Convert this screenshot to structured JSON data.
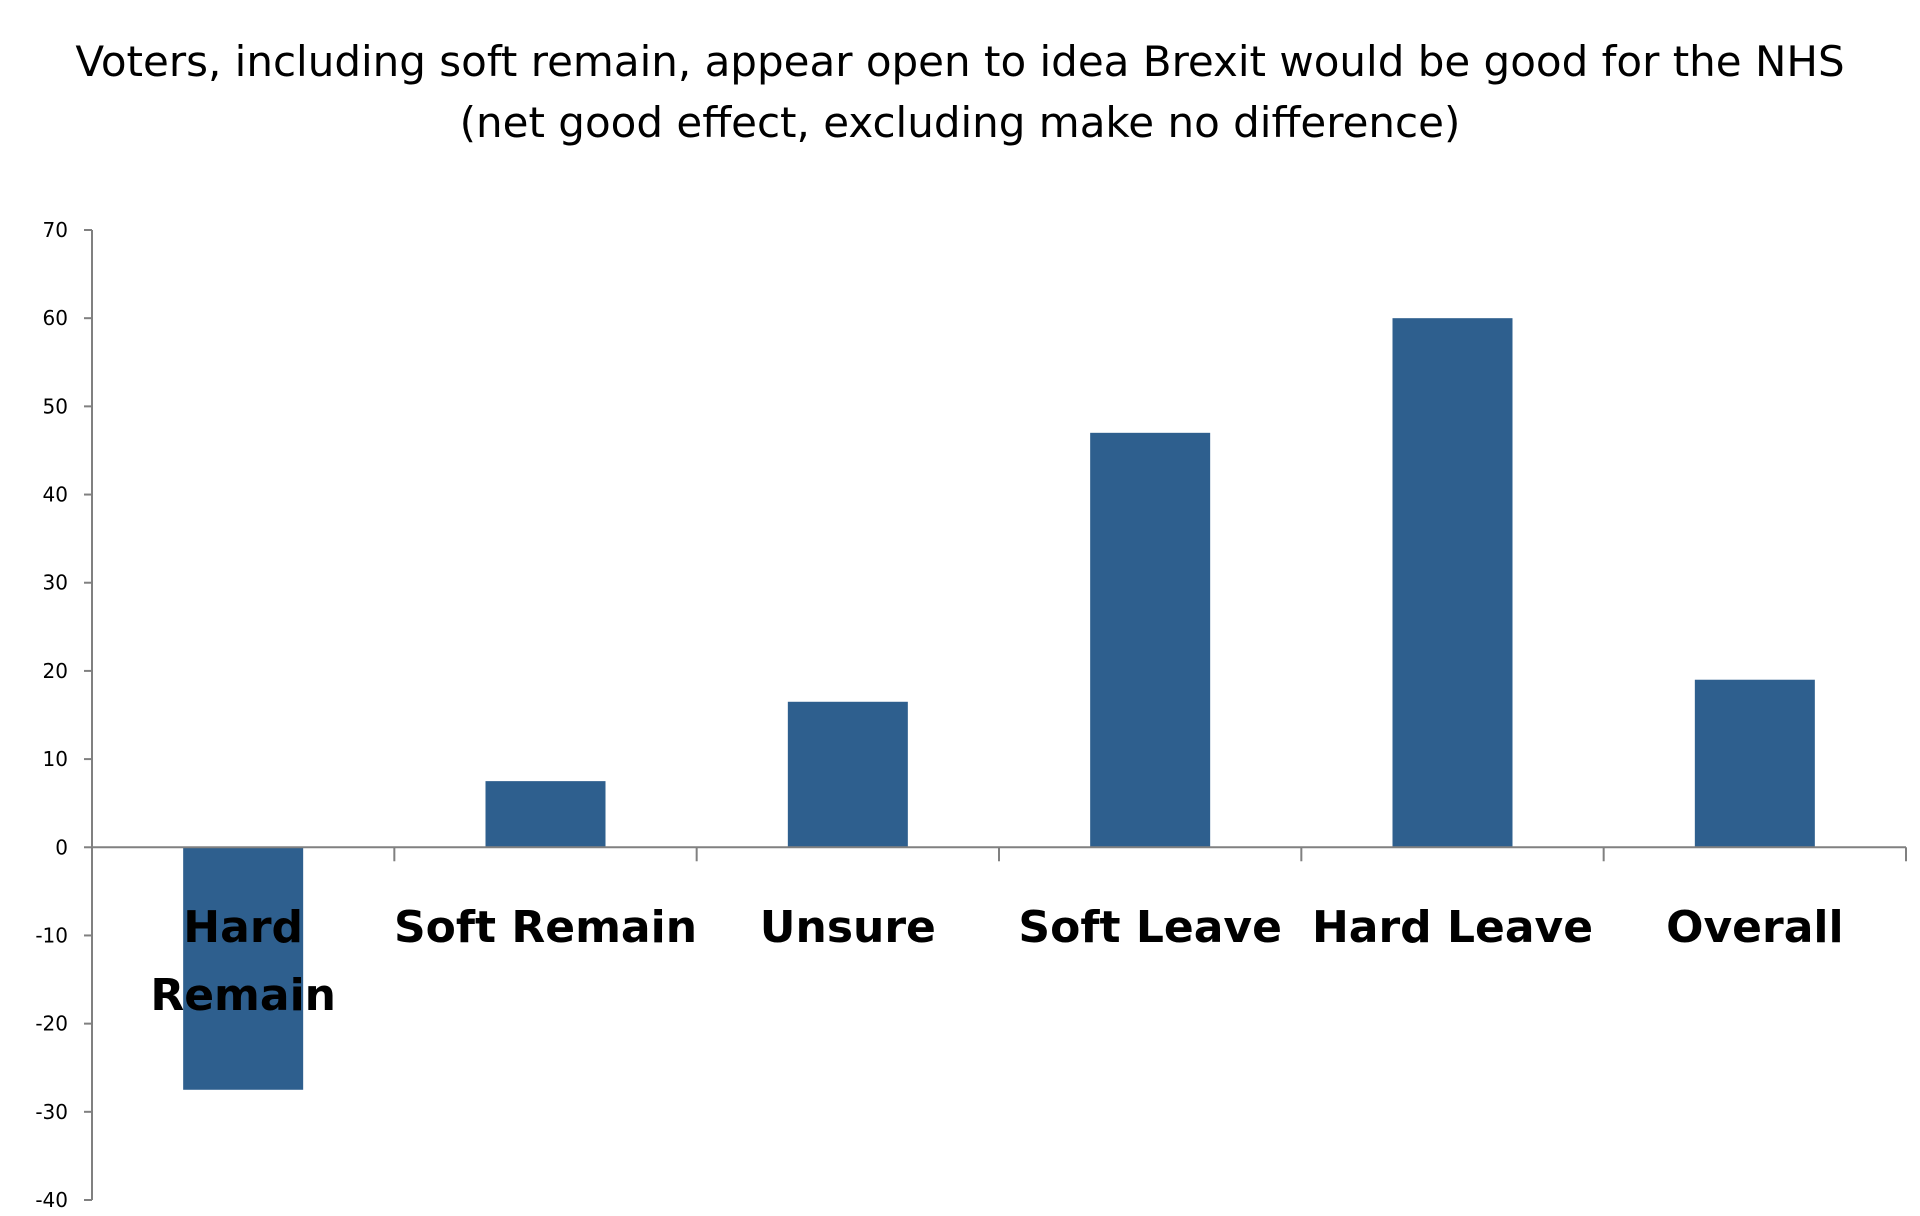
{
  "chart_data": {
    "type": "bar",
    "title": [
      "Voters, including soft remain, appear open to idea Brexit would be good for the NHS",
      "(net good effect, excluding make no difference)"
    ],
    "categories": [
      [
        "Hard",
        "Remain"
      ],
      [
        "Soft Remain"
      ],
      [
        "Unsure"
      ],
      [
        "Soft Leave"
      ],
      [
        "Hard Leave"
      ],
      [
        "Overall"
      ]
    ],
    "values": [
      -27.5,
      7.5,
      16.5,
      47,
      60,
      19
    ],
    "ylim": [
      -40,
      70
    ],
    "yticks": [
      -40,
      -30,
      -20,
      -10,
      0,
      10,
      20,
      30,
      40,
      50,
      60,
      70
    ],
    "bar_color": "#2e5f8e",
    "axis_color": "#808080",
    "grid": false,
    "legend": "none"
  }
}
